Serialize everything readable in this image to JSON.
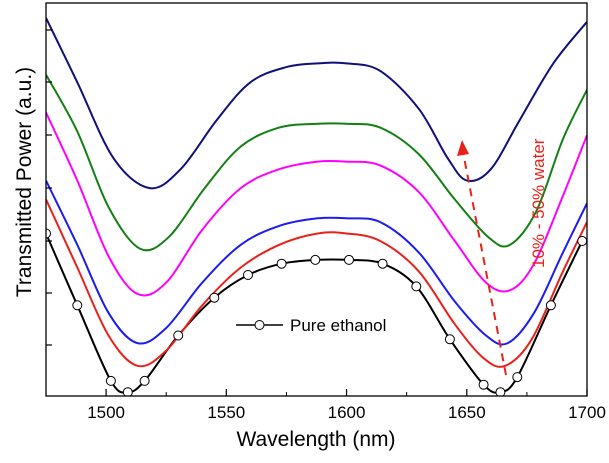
{
  "chart_data": {
    "type": "line",
    "xlabel": "Wavelength (nm)",
    "ylabel": "Transmitted Power (a.u.)",
    "xlim": [
      1475,
      1700
    ],
    "ylim": [
      0,
      1
    ],
    "x_ticks": [
      1500,
      1550,
      1600,
      1650,
      1700
    ],
    "y_ticks_labeled": false,
    "grid": false,
    "legend": {
      "placement": "center-bottom",
      "entries": [
        "Pure ethanol"
      ]
    },
    "annotation": {
      "text": "10% - 50% water",
      "color": "#e8211a",
      "arrow": "dashed, pointing up"
    },
    "series": [
      {
        "name": "Pure ethanol",
        "color": "#000000",
        "marker": "open-circle",
        "x": [
          1475,
          1488,
          1502,
          1509,
          1516,
          1530,
          1545,
          1559,
          1573,
          1587,
          1601,
          1615,
          1629,
          1643,
          1657,
          1664,
          1671,
          1685,
          1698
        ],
        "y": [
          0.43,
          0.24,
          0.04,
          0.01,
          0.04,
          0.16,
          0.26,
          0.32,
          0.35,
          0.36,
          0.36,
          0.35,
          0.29,
          0.15,
          0.03,
          0.01,
          0.05,
          0.24,
          0.41
        ]
      },
      {
        "color": "#e8211a",
        "x": [
          1475,
          1488,
          1501,
          1513,
          1525,
          1540,
          1556,
          1572,
          1588,
          1600,
          1614,
          1630,
          1645,
          1657,
          1666,
          1677,
          1690,
          1700
        ],
        "y": [
          0.52,
          0.34,
          0.16,
          0.08,
          0.12,
          0.24,
          0.34,
          0.4,
          0.43,
          0.43,
          0.41,
          0.33,
          0.19,
          0.1,
          0.08,
          0.15,
          0.33,
          0.46
        ]
      },
      {
        "color": "#1c1cf0",
        "x": [
          1475,
          1488,
          1501,
          1513,
          1525,
          1540,
          1556,
          1572,
          1588,
          1600,
          1614,
          1630,
          1645,
          1658,
          1667,
          1678,
          1690,
          1700
        ],
        "y": [
          0.57,
          0.4,
          0.22,
          0.14,
          0.18,
          0.3,
          0.4,
          0.45,
          0.47,
          0.47,
          0.46,
          0.38,
          0.25,
          0.16,
          0.14,
          0.22,
          0.38,
          0.51
        ]
      },
      {
        "color": "#ff00ff",
        "x": [
          1475,
          1488,
          1501,
          1513,
          1525,
          1540,
          1556,
          1572,
          1588,
          1600,
          1614,
          1630,
          1645,
          1658,
          1668,
          1678,
          1690,
          1700
        ],
        "y": [
          0.75,
          0.57,
          0.37,
          0.27,
          0.3,
          0.44,
          0.55,
          0.6,
          0.62,
          0.62,
          0.61,
          0.54,
          0.41,
          0.3,
          0.28,
          0.35,
          0.53,
          0.69
        ]
      },
      {
        "color": "#138013",
        "x": [
          1475,
          1488,
          1501,
          1514,
          1526,
          1541,
          1556,
          1572,
          1588,
          1600,
          1614,
          1630,
          1645,
          1659,
          1668,
          1679,
          1690,
          1700
        ],
        "y": [
          0.85,
          0.7,
          0.5,
          0.39,
          0.42,
          0.55,
          0.66,
          0.71,
          0.72,
          0.72,
          0.71,
          0.64,
          0.52,
          0.42,
          0.4,
          0.49,
          0.68,
          0.81
        ]
      },
      {
        "color": "#10107a",
        "x": [
          1475,
          1488,
          1503,
          1518,
          1531,
          1546,
          1560,
          1575,
          1588,
          1600,
          1614,
          1630,
          1642,
          1650,
          1660,
          1672,
          1686,
          1700
        ],
        "y": [
          1.0,
          0.83,
          0.63,
          0.55,
          0.6,
          0.73,
          0.83,
          0.87,
          0.88,
          0.88,
          0.86,
          0.76,
          0.63,
          0.57,
          0.6,
          0.73,
          0.88,
          0.99
        ]
      }
    ]
  }
}
